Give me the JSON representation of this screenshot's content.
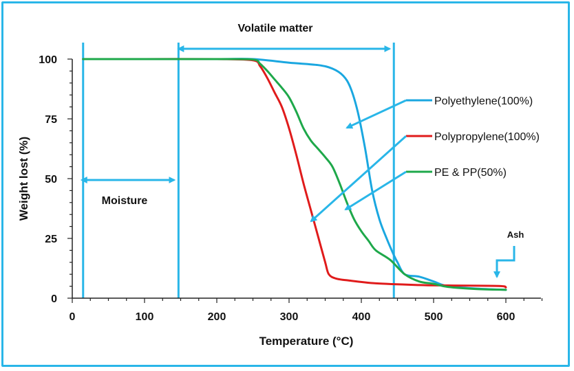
{
  "chart_data": {
    "type": "line",
    "xlabel": "Temperature (°C)",
    "ylabel": "Weight lost (%)",
    "xlim": [
      0,
      650
    ],
    "ylim": [
      0,
      100
    ],
    "xticks": [
      0,
      100,
      200,
      300,
      400,
      500,
      600
    ],
    "yticks": [
      0,
      25,
      50,
      75,
      100
    ],
    "grid": false,
    "legend_position": "right",
    "series": [
      {
        "name": "Polyethylene(100%)",
        "color": "#1aa7e0",
        "x": [
          15,
          100,
          200,
          250,
          300,
          340,
          360,
          375,
          385,
          395,
          405,
          415,
          425,
          435,
          445,
          450,
          460,
          480,
          500,
          520,
          560,
          600
        ],
        "y": [
          100,
          100,
          100,
          100,
          98.5,
          97.5,
          96,
          93,
          88,
          78,
          63,
          45,
          33,
          25,
          18,
          15,
          10,
          9,
          7,
          5,
          4,
          3.5
        ]
      },
      {
        "name": "Polypropylene(100%)",
        "color": "#e01b1b",
        "x": [
          15,
          100,
          200,
          250,
          260,
          270,
          280,
          290,
          300,
          310,
          320,
          330,
          340,
          350,
          355,
          365,
          380,
          420,
          480,
          520,
          590,
          600
        ],
        "y": [
          100,
          100,
          100,
          99.5,
          97,
          92,
          86,
          80,
          71,
          60,
          48,
          37,
          26,
          15,
          10,
          8.2,
          7.5,
          6.2,
          5.5,
          5.3,
          5.1,
          4.5
        ]
      },
      {
        "name": "PE & PP(50%)",
        "color": "#1ea84a",
        "x": [
          15,
          100,
          200,
          250,
          260,
          270,
          280,
          290,
          300,
          310,
          320,
          330,
          340,
          350,
          360,
          370,
          380,
          390,
          400,
          410,
          420,
          440,
          460,
          480,
          500,
          520,
          560,
          600
        ],
        "y": [
          100,
          100,
          100,
          99.8,
          98,
          95,
          91.5,
          88,
          84,
          78,
          71,
          66,
          62.5,
          59,
          55,
          48,
          40,
          33,
          28,
          24,
          20,
          16,
          10,
          7,
          6,
          4.7,
          3.8,
          3.5
        ]
      }
    ],
    "vertical_markers": [
      15,
      147,
      445
    ],
    "annotations": {
      "volatile": "Volatile matter",
      "moisture": "Moisture",
      "ash": "Ash"
    }
  }
}
